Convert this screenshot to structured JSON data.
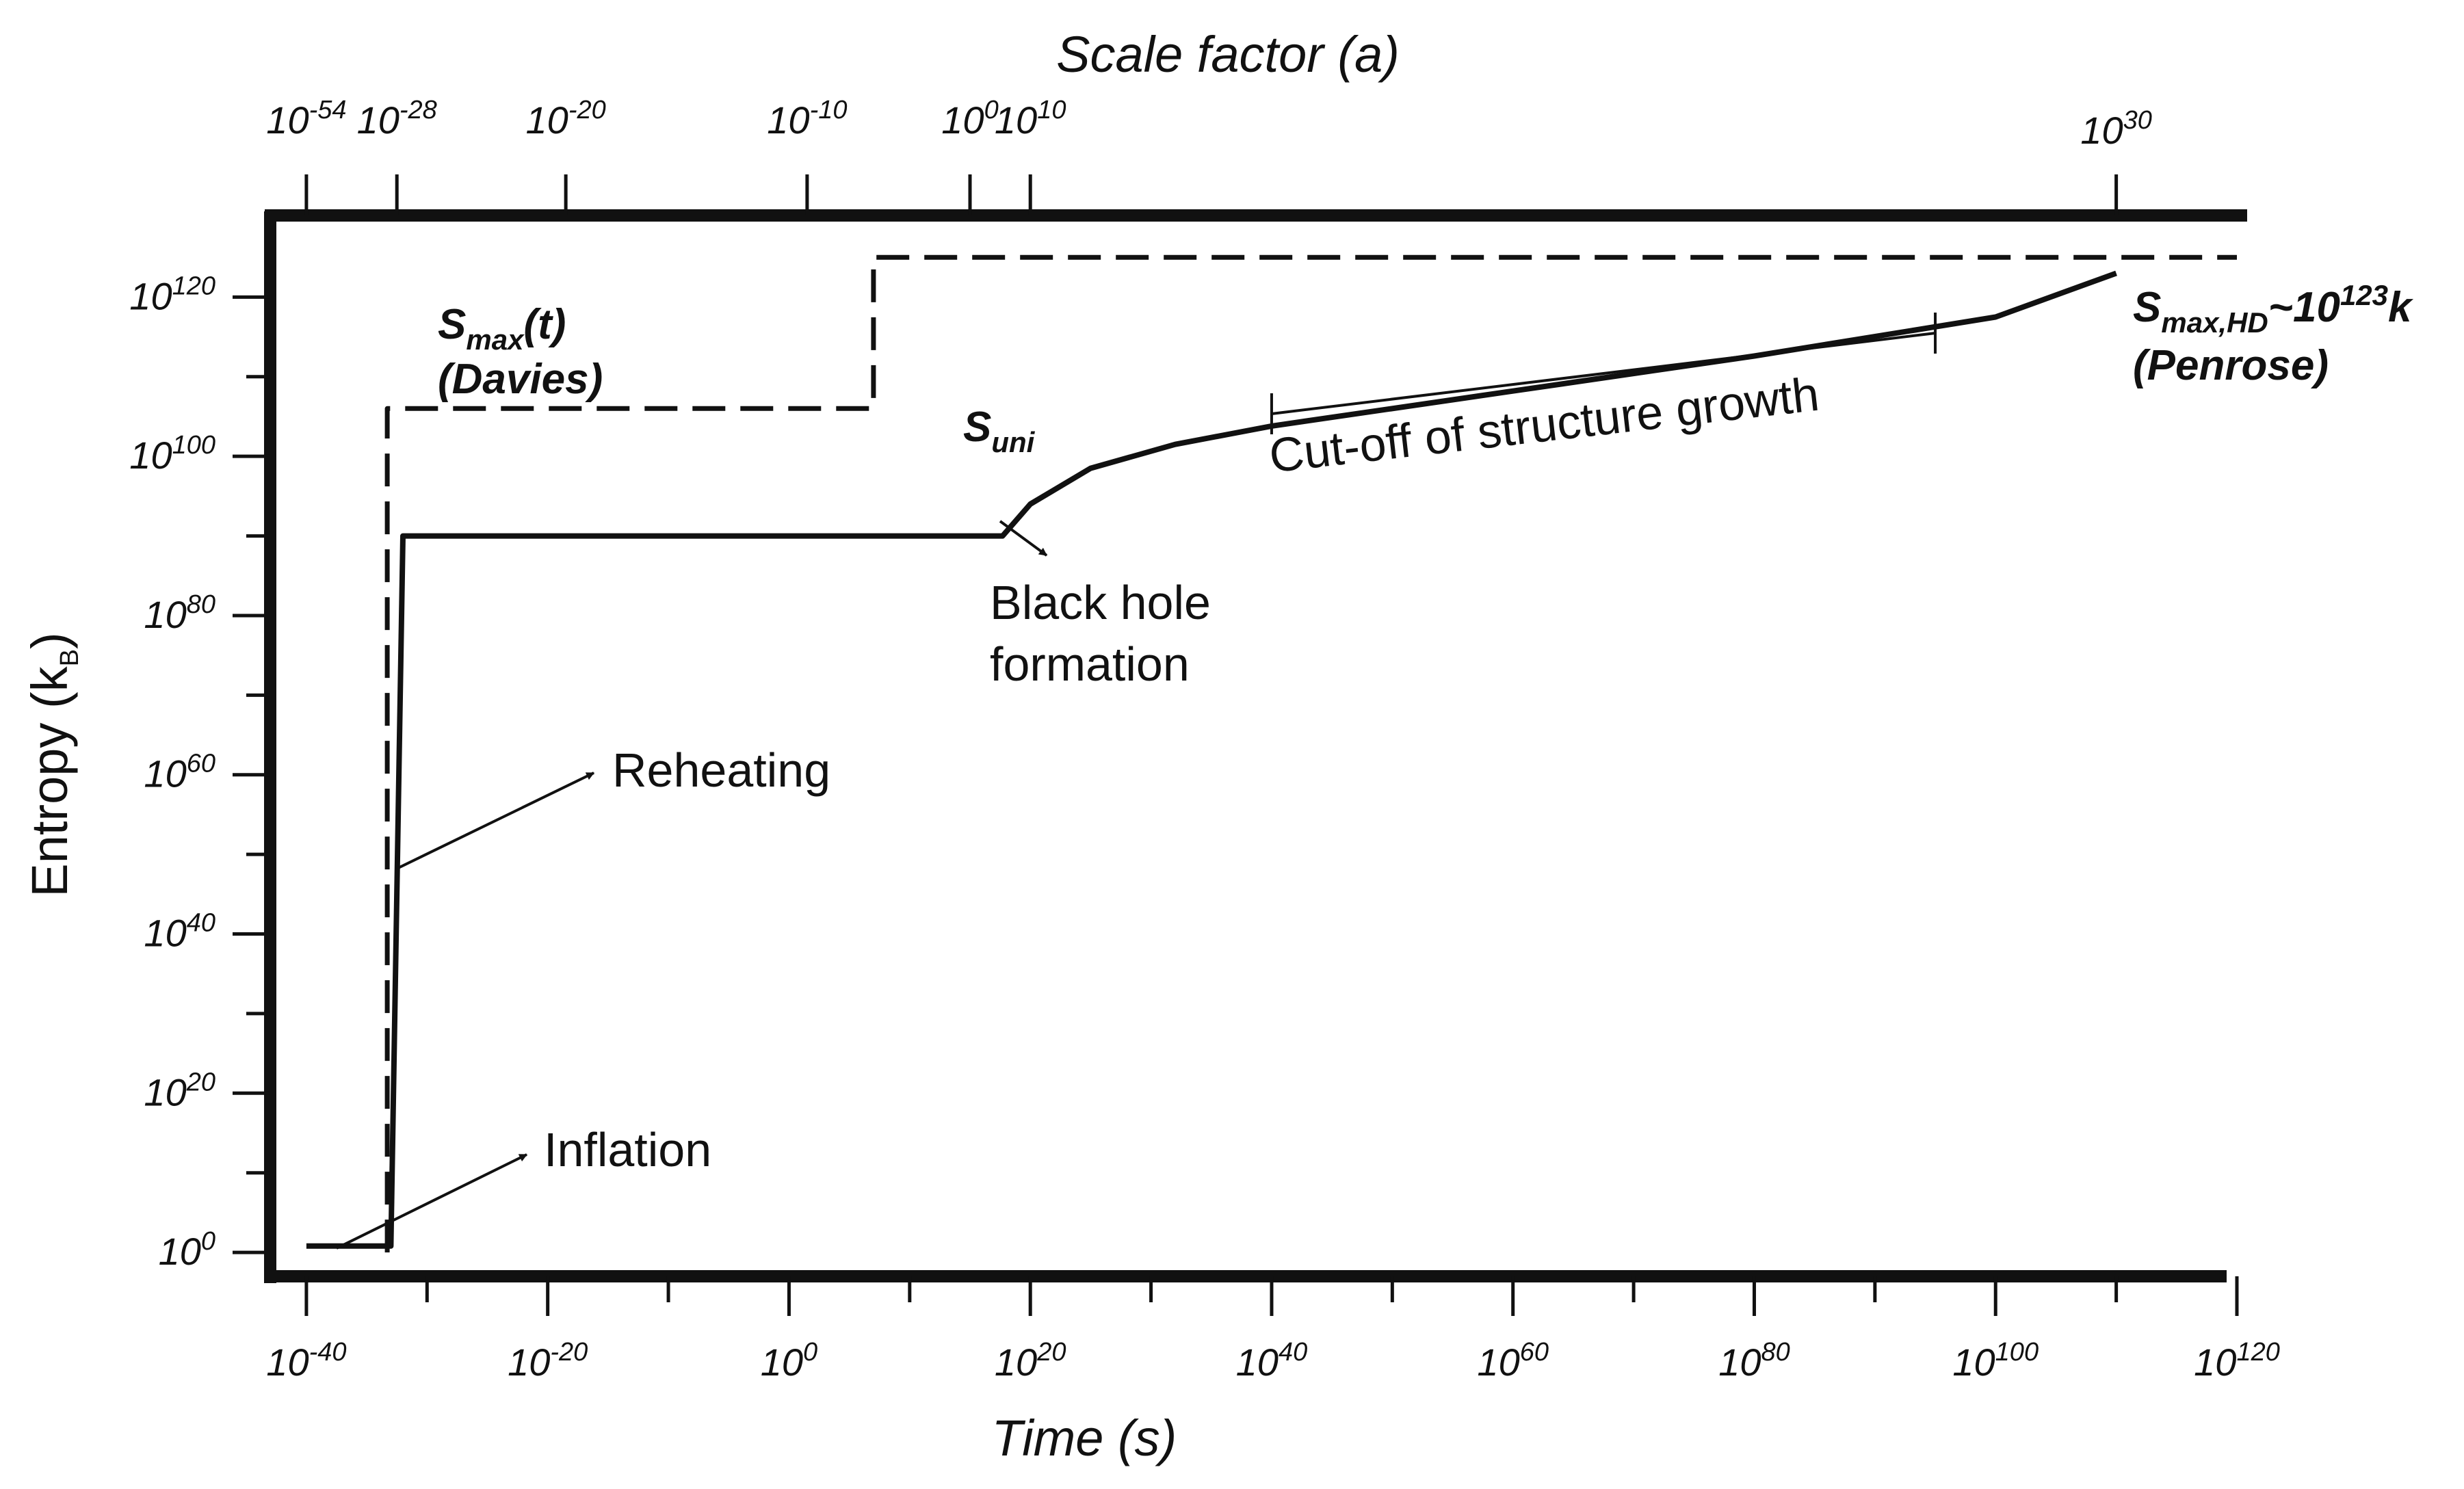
{
  "chart_data": {
    "type": "line",
    "title": "",
    "xlabel": "Time (s)",
    "ylabel": "Entropy (k",
    "ylabel_sub": "B",
    "ylabel_close": ")",
    "x2label": "Scale factor (a)",
    "x_scale": "log10",
    "y_scale": "log10",
    "xlim": [
      -43,
      120
    ],
    "ylim": [
      -3,
      130
    ],
    "x_ticks": [
      {
        "base": "10",
        "exp": "-40"
      },
      {
        "base": "10",
        "exp": "-20"
      },
      {
        "base": "10",
        "exp": "0"
      },
      {
        "base": "10",
        "exp": "20"
      },
      {
        "base": "10",
        "exp": "40"
      },
      {
        "base": "10",
        "exp": "60"
      },
      {
        "base": "10",
        "exp": "80"
      },
      {
        "base": "10",
        "exp": "100"
      },
      {
        "base": "10",
        "exp": "120"
      }
    ],
    "y_ticks": [
      {
        "base": "10",
        "exp": "0"
      },
      {
        "base": "10",
        "exp": "20"
      },
      {
        "base": "10",
        "exp": "40"
      },
      {
        "base": "10",
        "exp": "60"
      },
      {
        "base": "10",
        "exp": "80"
      },
      {
        "base": "10",
        "exp": "100"
      },
      {
        "base": "10",
        "exp": "120"
      }
    ],
    "x2_ticks": [
      {
        "base": "10",
        "exp": "-54",
        "at_log10_time": -40
      },
      {
        "base": "10",
        "exp": "-28",
        "at_log10_time": -32.5
      },
      {
        "base": "10",
        "exp": "-20",
        "at_log10_time": -18.5
      },
      {
        "base": "10",
        "exp": "-10",
        "at_log10_time": 1.5
      },
      {
        "base": "10",
        "exp": "0",
        "at_log10_time": 15
      },
      {
        "base": "10",
        "exp": "10",
        "at_log10_time": 20
      },
      {
        "base": "10",
        "exp": "30",
        "at_log10_time": 110
      }
    ],
    "series": [
      {
        "name": "S",
        "name_sub": "uni",
        "style": "solid",
        "points": [
          [
            -40,
            0.8
          ],
          [
            -33,
            0.8
          ],
          [
            -32,
            90
          ],
          [
            17.7,
            90
          ],
          [
            20,
            94
          ],
          [
            25,
            98.5
          ],
          [
            32,
            101.5
          ],
          [
            40,
            103.8
          ],
          [
            60,
            108.2
          ],
          [
            80,
            112.6
          ],
          [
            100,
            117.5
          ],
          [
            110,
            123
          ]
        ]
      },
      {
        "name": "S",
        "name_sub": "max",
        "name_suffix": "(t)",
        "style": "dashed",
        "points": [
          [
            -33.3,
            0
          ],
          [
            -33.3,
            106
          ],
          [
            7,
            106
          ],
          [
            7,
            125
          ],
          [
            120,
            125
          ]
        ]
      }
    ],
    "annotations": {
      "penrose_main": "S",
      "penrose_sub": "max,HD",
      "penrose_mid": "~10",
      "penrose_sup": "123",
      "penrose_end": "k",
      "penrose_note": "(Penrose)",
      "davies_main": "S",
      "davies_sub": "max",
      "davies_end": "(t)",
      "davies_note": "(Davies)",
      "suni_main": "S",
      "suni_sub": "uni",
      "black_hole_1": "Black hole",
      "black_hole_2": "formation",
      "cutoff": "Cut-off of structure growth",
      "cutoff_range": [
        40,
        95
      ],
      "reheating": "Reheating",
      "inflation": "Inflation"
    },
    "grid": false,
    "legend": "none"
  }
}
